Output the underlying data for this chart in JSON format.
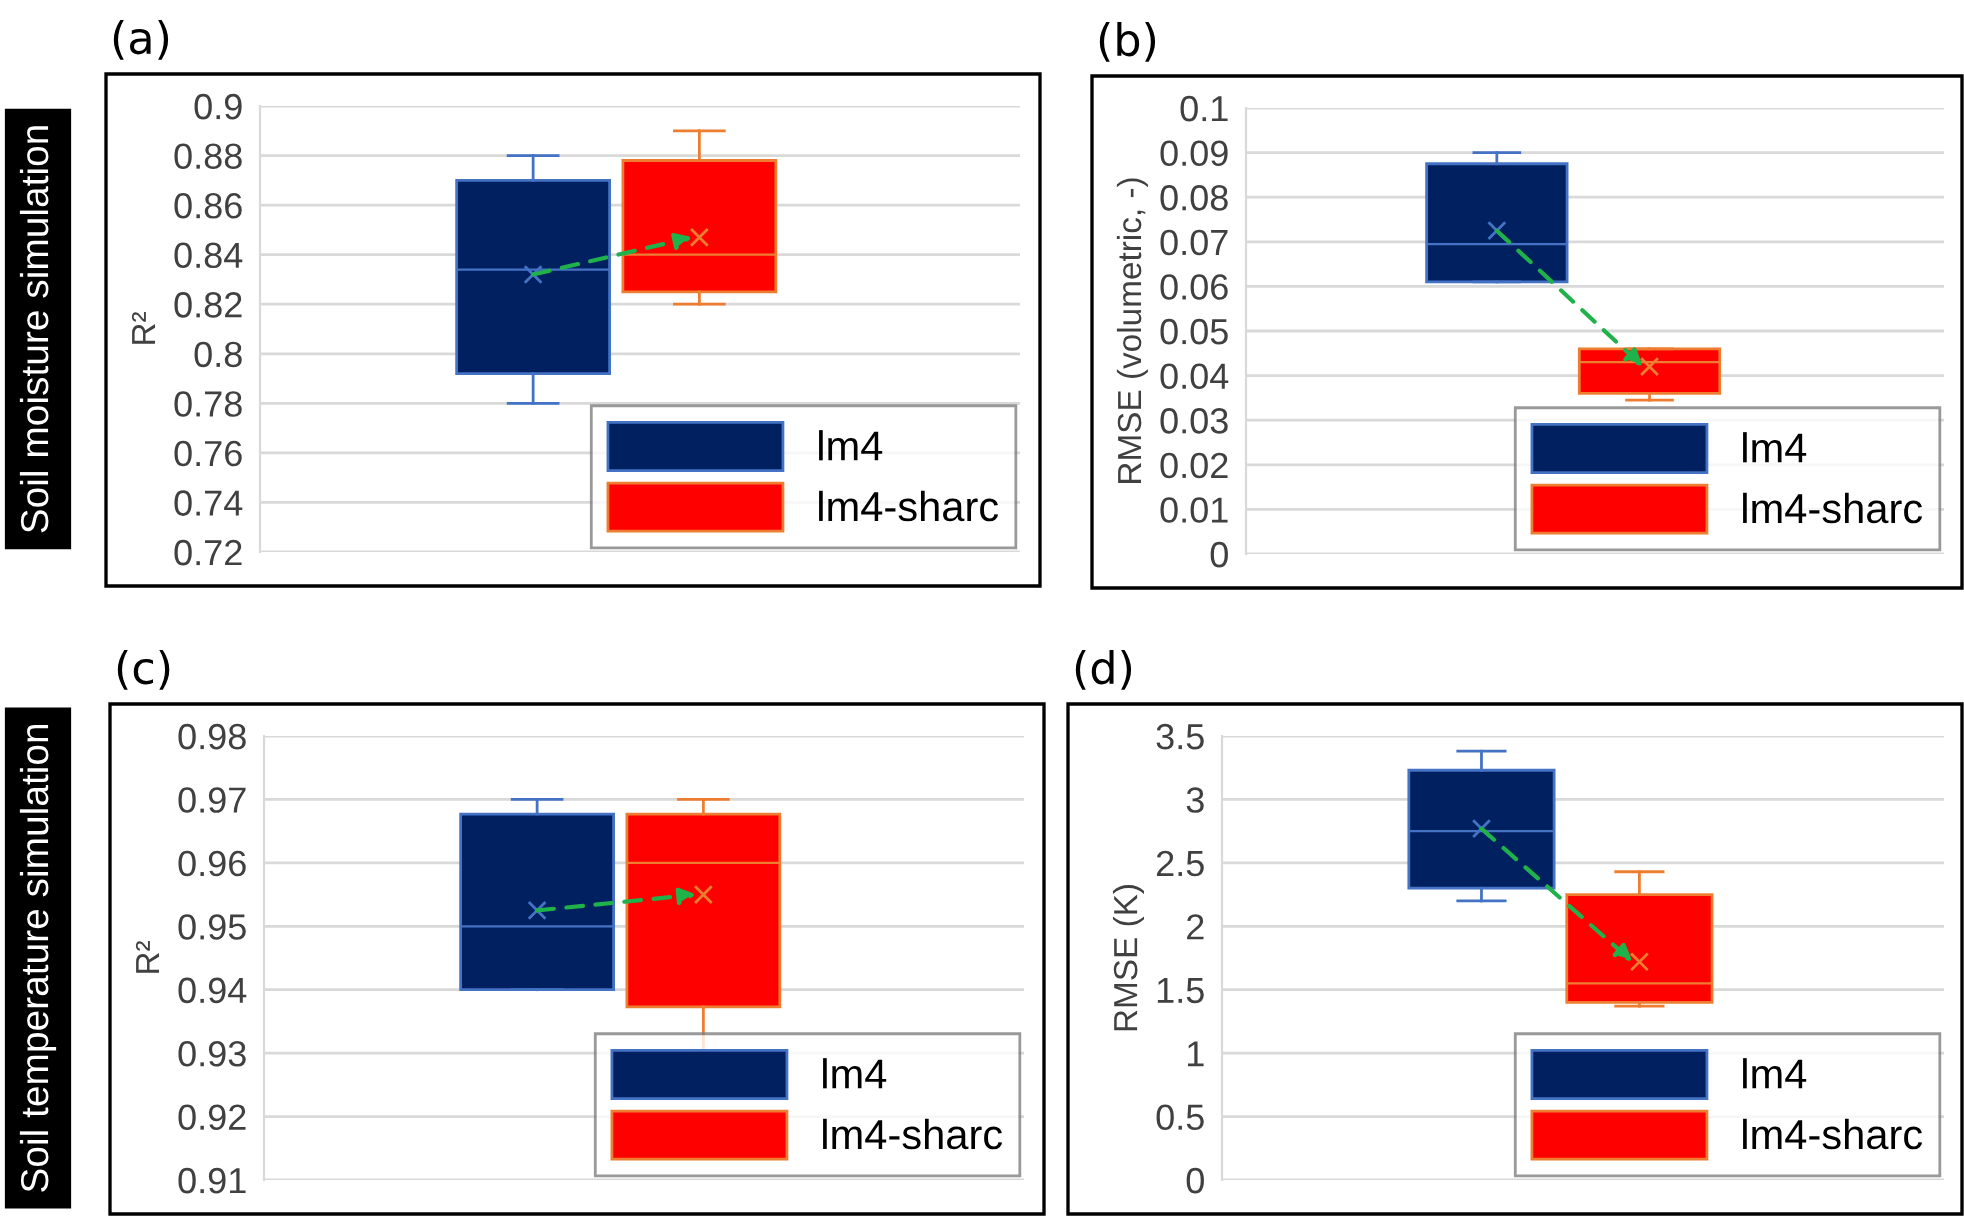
{
  "chart_data": [
    {
      "type": "box",
      "title": "(a)",
      "ylabel": "R²",
      "categories": [
        null
      ],
      "ylim": [
        0.72,
        0.9
      ],
      "yticks": [
        0.72,
        0.74,
        0.76,
        0.78,
        0.8,
        0.82,
        0.84,
        0.86,
        0.88,
        0.9
      ],
      "grid": "y",
      "legend": "bottom right",
      "tick_labels": "y",
      "annotations": [
        "Soil moisture simulation"
      ],
      "series": [
        {
          "name": "lm4",
          "color": "#002060",
          "boxes": [
            {
              "low": 0.78,
              "q1": 0.792,
              "median": 0.834,
              "q3": 0.87,
              "high": 0.88,
              "mean": 0.832
            }
          ]
        },
        {
          "name": "lm4-sharc",
          "color": "#ff0000",
          "boxes": [
            {
              "low": 0.82,
              "q1": 0.825,
              "median": 0.84,
              "q3": 0.878,
              "high": 0.89,
              "mean": 0.847
            }
          ]
        }
      ]
    },
    {
      "type": "box",
      "title": "(b)",
      "ylabel": "RMSE (volumetric, -)",
      "categories": [
        null
      ],
      "ylim": [
        0,
        0.1
      ],
      "yticks": [
        0,
        0.01,
        0.02,
        0.03,
        0.04,
        0.05,
        0.06,
        0.07,
        0.08,
        0.09,
        0.1
      ],
      "grid": "y",
      "legend": "bottom right",
      "tick_labels": "y",
      "series": [
        {
          "name": "lm4",
          "color": "#002060",
          "boxes": [
            {
              "low": 0.061,
              "q1": 0.061,
              "median": 0.0695,
              "q3": 0.0875,
              "high": 0.09,
              "mean": 0.0725
            }
          ]
        },
        {
          "name": "lm4-sharc",
          "color": "#ff0000",
          "boxes": [
            {
              "low": 0.0345,
              "q1": 0.036,
              "median": 0.043,
              "q3": 0.046,
              "high": 0.046,
              "mean": 0.042
            }
          ]
        }
      ]
    },
    {
      "type": "box",
      "title": "(c)",
      "ylabel": "R²",
      "categories": [
        null
      ],
      "ylim": [
        0.91,
        0.98
      ],
      "yticks": [
        0.91,
        0.92,
        0.93,
        0.94,
        0.95,
        0.96,
        0.97,
        0.98
      ],
      "grid": "y",
      "legend": "bottom right",
      "tick_labels": "y",
      "annotations": [
        "Soil temperature simulation"
      ],
      "series": [
        {
          "name": "lm4",
          "color": "#002060",
          "boxes": [
            {
              "low": 0.94,
              "q1": 0.94,
              "median": 0.95,
              "q3": 0.9677,
              "high": 0.97,
              "mean": 0.9525
            }
          ]
        },
        {
          "name": "lm4-sharc",
          "color": "#ff0000",
          "boxes": [
            {
              "low": 0.93,
              "q1": 0.9373,
              "median": 0.96,
              "q3": 0.9677,
              "high": 0.97,
              "mean": 0.955
            }
          ]
        }
      ]
    },
    {
      "type": "box",
      "title": "(d)",
      "ylabel": "RMSE (K)",
      "categories": [
        null
      ],
      "ylim": [
        0,
        3.5
      ],
      "yticks": [
        0,
        0.5,
        1,
        1.5,
        2,
        2.5,
        3,
        3.5
      ],
      "grid": "y",
      "legend": "bottom right",
      "tick_labels": "y",
      "series": [
        {
          "name": "lm4",
          "color": "#002060",
          "boxes": [
            {
              "low": 2.2,
              "q1": 2.3,
              "median": 2.75,
              "q3": 3.23,
              "high": 3.38,
              "mean": 2.77
            }
          ]
        },
        {
          "name": "lm4-sharc",
          "color": "#ff0000",
          "boxes": [
            {
              "low": 1.37,
              "q1": 1.4,
              "median": 1.55,
              "q3": 2.25,
              "high": 2.43,
              "mean": 1.72
            }
          ]
        }
      ]
    }
  ]
}
